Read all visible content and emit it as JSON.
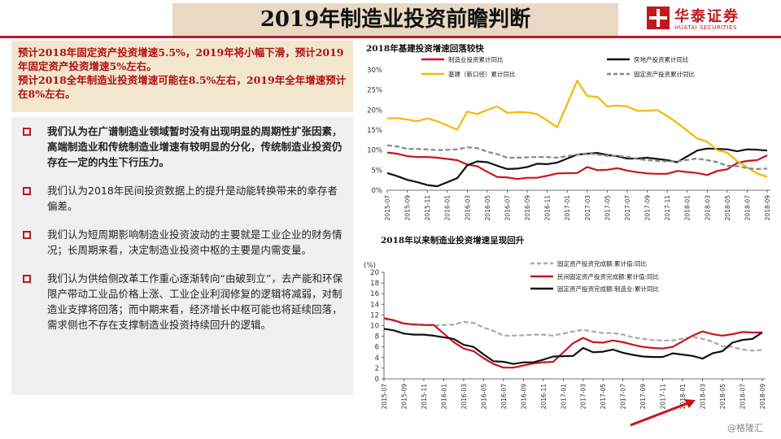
{
  "header": {
    "title": "2019年制造业投资前瞻判断",
    "logo_cn": "华泰证券",
    "logo_en": "HUATAI SECURITIES"
  },
  "summary": [
    "预计2018年固定资产投资增速5.5%，2019年将小幅下滑，预计2019年固定资产投资增速5%左右。",
    "预计2018全年制造业投资增速可能在8.5%左右，2019年全年增速预计在8%左右。"
  ],
  "bullets": [
    {
      "text": "我们认为在广谱制造业领域暂时没有出现明显的周期性扩张因素，高端制造业和传统制造业增速有较明显的分化，传统制造业投资仍存在一定的内生下行压力。",
      "bold": true
    },
    {
      "text": "我们认为2018年民间投资数据上的提升是动能转换带来的幸存者偏差。",
      "bold": false
    },
    {
      "text": "我们认为短周期影响制造业投资波动的主要就是工业企业的财务情况；长周期来看，决定制造业投资中枢的主要是内需变量。",
      "bold": false
    },
    {
      "text": "我们认为供给侧改革工作重心逐渐转向“由破到立”，去产能和环保限产带动工业品价格上涨、工业企业利润修复的逻辑将减弱，对制造业支撑将回落；而中期来看，经济增长中枢可能也将延续回落，需求侧也不存在支撑制造业投资持续回升的逻辑。",
      "bold": false
    }
  ],
  "watermark": "@格隆汇",
  "chart_data": [
    {
      "type": "line",
      "title": "2018年基建投资增速回落较快",
      "x_tick_labels": [
        "2015-07",
        "2015-09",
        "2015-11",
        "2016-01",
        "2016-03",
        "2016-05",
        "2016-07",
        "2016-09",
        "2016-11",
        "2017-01",
        "2017-03",
        "2017-05",
        "2017-07",
        "2017-09",
        "2017-11",
        "2018-01",
        "2018-03",
        "2018-05",
        "2018-07",
        "2018-09"
      ],
      "x": [
        "2015-07",
        "2015-08",
        "2015-09",
        "2015-10",
        "2015-11",
        "2015-12",
        "2016-02",
        "2016-03",
        "2016-04",
        "2016-05",
        "2016-06",
        "2016-07",
        "2016-08",
        "2016-09",
        "2016-10",
        "2016-11",
        "2016-12",
        "2017-02",
        "2017-03",
        "2017-04",
        "2017-05",
        "2017-06",
        "2017-07",
        "2017-08",
        "2017-09",
        "2017-10",
        "2017-11",
        "2017-12",
        "2018-02",
        "2018-03",
        "2018-04",
        "2018-05",
        "2018-06",
        "2018-07",
        "2018-08",
        "2018-09"
      ],
      "ylim": [
        0,
        30
      ],
      "y_ticks": [
        "0%",
        "5%",
        "10%",
        "15%",
        "20%",
        "25%",
        "30%"
      ],
      "legend": "top",
      "series": [
        {
          "name": "制造业投资累计同比",
          "color": "#c8151d",
          "style": "solid",
          "values": [
            9.4,
            9.1,
            8.5,
            8.3,
            8.3,
            8.1,
            7.5,
            6.4,
            6.0,
            4.6,
            3.3,
            3.2,
            2.8,
            3.1,
            3.1,
            3.6,
            4.2,
            4.3,
            5.8,
            5.0,
            5.1,
            5.5,
            4.9,
            4.5,
            4.2,
            4.1,
            4.1,
            4.8,
            4.3,
            3.8,
            4.8,
            5.2,
            6.8,
            7.3,
            7.5,
            8.7
          ]
        },
        {
          "name": "房地产投资累计同比",
          "color": "#111111",
          "style": "solid",
          "values": [
            4.3,
            3.5,
            2.6,
            2.0,
            1.3,
            1.0,
            3.0,
            6.2,
            7.2,
            7.0,
            6.1,
            5.3,
            5.4,
            5.8,
            6.6,
            6.5,
            6.9,
            8.9,
            9.1,
            9.3,
            8.8,
            8.5,
            7.9,
            7.9,
            8.1,
            7.8,
            7.5,
            7.0,
            9.9,
            10.4,
            10.3,
            10.2,
            9.7,
            10.2,
            10.1,
            9.9
          ]
        },
        {
          "name": "基建（新口径）累计同比",
          "color": "#f5b800",
          "style": "solid",
          "values": [
            17.9,
            18.0,
            17.6,
            17.2,
            17.9,
            17.2,
            15.1,
            19.6,
            19.0,
            20.0,
            20.9,
            19.3,
            19.5,
            19.4,
            19.0,
            17.4,
            15.7,
            27.3,
            23.5,
            23.3,
            20.9,
            21.1,
            20.9,
            19.8,
            19.8,
            20.0,
            18.5,
            16.8,
            12.9,
            12.1,
            10.0,
            9.4,
            7.3,
            5.7,
            4.2,
            3.3
          ]
        },
        {
          "name": "固定资产投资累计同比",
          "color": "#888888",
          "style": "dashed",
          "values": [
            11.2,
            10.9,
            10.3,
            10.3,
            10.2,
            10.0,
            10.2,
            10.7,
            10.5,
            9.6,
            9.0,
            8.1,
            8.1,
            8.2,
            8.3,
            8.3,
            8.1,
            8.9,
            9.2,
            8.9,
            8.6,
            8.6,
            8.3,
            7.8,
            7.5,
            7.3,
            7.2,
            7.2,
            7.9,
            7.5,
            7.0,
            6.1,
            6.0,
            5.5,
            5.3,
            5.4
          ]
        }
      ]
    },
    {
      "type": "line",
      "title": "2018年以来制造业投资增速呈现回升",
      "ylabel": "(%)",
      "x_tick_labels": [
        "2015-07",
        "2015-09",
        "2015-11",
        "2016-01",
        "2016-03",
        "2016-05",
        "2016-07",
        "2016-09",
        "2016-11",
        "2017-01",
        "2017-03",
        "2017-05",
        "2017-07",
        "2017-09",
        "2017-11",
        "2018-01",
        "2018-03",
        "2018-05",
        "2018-07",
        "2018-09"
      ],
      "x": [
        "2015-07",
        "2015-08",
        "2015-09",
        "2015-10",
        "2015-11",
        "2015-12",
        "2016-02",
        "2016-03",
        "2016-04",
        "2016-05",
        "2016-06",
        "2016-07",
        "2016-08",
        "2016-09",
        "2016-10",
        "2016-11",
        "2016-12",
        "2017-02",
        "2017-03",
        "2017-04",
        "2017-05",
        "2017-06",
        "2017-07",
        "2017-08",
        "2017-09",
        "2017-10",
        "2017-11",
        "2017-12",
        "2018-02",
        "2018-03",
        "2018-04",
        "2018-05",
        "2018-06",
        "2018-07",
        "2018-08",
        "2018-09"
      ],
      "ylim": [
        0,
        20
      ],
      "y_ticks": [
        "0",
        "2",
        "4",
        "6",
        "8",
        "10",
        "12",
        "14",
        "16",
        "18",
        "20"
      ],
      "legend": "top-right",
      "annotation": "red arrow pointing up-right along 2018 upturn",
      "series": [
        {
          "name": "固定资产投资完成额:累计值:同比",
          "color": "#aaaaaa",
          "style": "dashed",
          "values": [
            11.2,
            10.9,
            10.3,
            10.3,
            10.2,
            10.0,
            10.2,
            10.7,
            10.5,
            9.6,
            9.0,
            8.1,
            8.1,
            8.2,
            8.3,
            8.3,
            8.1,
            8.9,
            9.2,
            8.9,
            8.6,
            8.6,
            8.3,
            7.8,
            7.5,
            7.3,
            7.2,
            7.2,
            7.9,
            7.5,
            7.0,
            6.1,
            6.0,
            5.5,
            5.3,
            5.4
          ]
        },
        {
          "name": "民间固定资产投资完成额:累计值:同比",
          "color": "#c8151d",
          "style": "solid",
          "values": [
            11.4,
            11.0,
            10.4,
            10.2,
            10.1,
            10.1,
            6.9,
            5.7,
            5.2,
            3.9,
            2.8,
            2.1,
            2.1,
            2.5,
            2.9,
            3.1,
            3.2,
            6.7,
            7.7,
            6.9,
            6.8,
            7.2,
            6.9,
            6.4,
            6.0,
            5.8,
            5.7,
            6.0,
            8.1,
            8.9,
            8.4,
            8.1,
            8.4,
            8.8,
            8.7,
            8.7
          ]
        },
        {
          "name": "固定资产投资完成额:制造业:累计同比",
          "color": "#111111",
          "style": "solid",
          "values": [
            9.4,
            9.1,
            8.5,
            8.3,
            8.3,
            8.1,
            7.5,
            6.4,
            6.0,
            4.6,
            3.3,
            3.2,
            2.8,
            3.1,
            3.1,
            3.6,
            4.2,
            4.3,
            5.8,
            5.0,
            5.1,
            5.5,
            4.9,
            4.5,
            4.2,
            4.1,
            4.1,
            4.8,
            4.3,
            3.8,
            4.8,
            5.2,
            6.8,
            7.3,
            7.5,
            8.7
          ]
        }
      ]
    }
  ]
}
